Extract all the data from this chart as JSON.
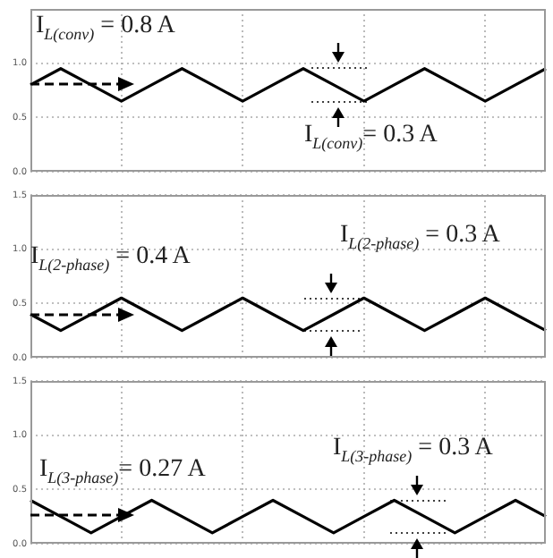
{
  "chart_data": [
    {
      "type": "line",
      "categories": [
        null,
        null,
        null,
        null,
        null,
        null,
        null,
        null,
        null,
        null,
        null,
        null,
        null,
        null,
        null,
        null,
        null,
        null
      ],
      "ylim": [
        0,
        1.5
      ],
      "yticks": [
        {
          "value": 0,
          "label": "0.0"
        },
        {
          "value": 0.5,
          "label": "0.5"
        },
        {
          "value": 1,
          "label": "1.0"
        }
      ],
      "tick_labels": "y",
      "grid": true,
      "legend": false,
      "marker": "none",
      "line_style": "solid",
      "series": [
        {
          "color": "#000000",
          "values": [
            0.8,
            0.95,
            0.8,
            0.65,
            0.8,
            0.95,
            0.8,
            0.65,
            0.8,
            0.95,
            0.8,
            0.65,
            0.8,
            0.95,
            0.8,
            0.65,
            0.8,
            0.95
          ]
        }
      ],
      "annotations": [
        {
          "text": "I$_{L(conv)}$ = 0.8 A",
          "y": 0.8
        },
        "I$_{L(conv)}$= 0.3 A"
      ]
    },
    {
      "type": "line",
      "categories": [
        null,
        null,
        null,
        null,
        null,
        null,
        null,
        null,
        null,
        null,
        null,
        null,
        null,
        null,
        null,
        null,
        null,
        null
      ],
      "ylim": [
        0,
        1.5
      ],
      "yticks": [
        {
          "value": 0,
          "label": "0.0"
        },
        {
          "value": 0.5,
          "label": "0.5"
        },
        {
          "value": 1,
          "label": "1.0"
        },
        {
          "value": 1.5,
          "label": "1.5"
        }
      ],
      "tick_labels": "y",
      "grid": true,
      "legend": false,
      "marker": "none",
      "line_style": "solid",
      "series": [
        {
          "color": "#000000",
          "values": [
            0.4,
            0.25,
            0.4,
            0.55,
            0.4,
            0.25,
            0.4,
            0.55,
            0.4,
            0.25,
            0.4,
            0.55,
            0.4,
            0.25,
            0.4,
            0.55,
            0.4,
            0.25
          ]
        }
      ],
      "annotations": [
        {
          "text": "I$_{L(2-phase)}$ = 0.4 A",
          "y": 0.4
        },
        "I$_{L(2-phase)}$ = 0.3 A"
      ]
    },
    {
      "type": "line",
      "categories": [
        null,
        null,
        null,
        null,
        null,
        null,
        null,
        null,
        null,
        null,
        null,
        null,
        null,
        null,
        null,
        null,
        null,
        null
      ],
      "ylim": [
        0,
        1.5
      ],
      "yticks": [
        {
          "value": 0,
          "label": "0.0"
        },
        {
          "value": 0.5,
          "label": "0.5"
        },
        {
          "value": 1,
          "label": "1.0"
        },
        {
          "value": 1.5,
          "label": "1.5"
        }
      ],
      "tick_labels": "y",
      "grid": true,
      "legend": false,
      "marker": "none",
      "line_style": "solid",
      "series": [
        {
          "color": "#000000",
          "values": [
            0.4,
            0.25,
            0.1,
            0.25,
            0.4,
            0.25,
            0.1,
            0.25,
            0.4,
            0.25,
            0.1,
            0.25,
            0.4,
            0.25,
            0.1,
            0.25,
            0.4,
            0.25
          ]
        }
      ],
      "annotations": [
        {
          "text": "I$_{L(3-phase)}$= 0.27 A",
          "y": 0.27
        },
        "I$_{L(3-phase)}$ = 0.3 A"
      ]
    }
  ]
}
